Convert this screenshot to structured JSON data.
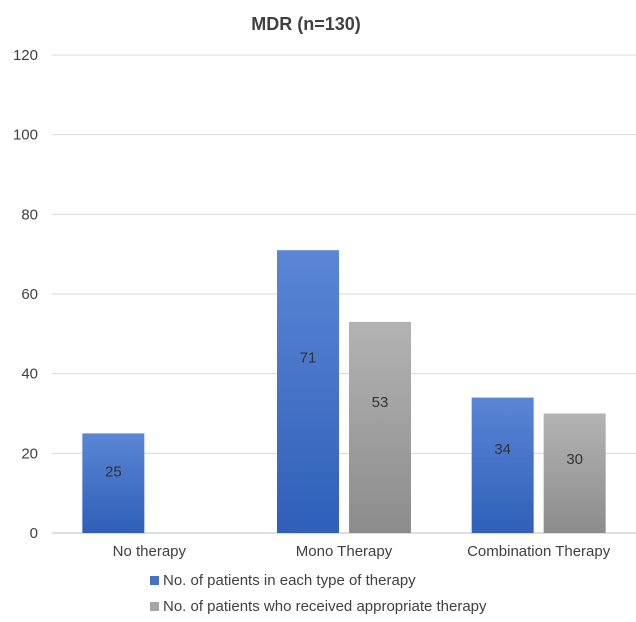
{
  "chart_data": {
    "type": "bar",
    "title": "MDR (n=130)",
    "categories": [
      "No therapy",
      "Mono Therapy",
      "Combination Therapy"
    ],
    "series": [
      {
        "name": "No. of patients in each type of therapy",
        "values": [
          25,
          71,
          34
        ],
        "color": "#4472C4"
      },
      {
        "name": "No. of patients who received appropriate therapy",
        "values": [
          null,
          53,
          30
        ],
        "color": "#A5A5A5"
      }
    ],
    "yticks": [
      "0",
      "20",
      "40",
      "60",
      "80",
      "100",
      "120"
    ],
    "ylim": [
      0,
      120
    ],
    "grid": true,
    "legend_position": "bottom",
    "xlabel": "",
    "ylabel": ""
  }
}
